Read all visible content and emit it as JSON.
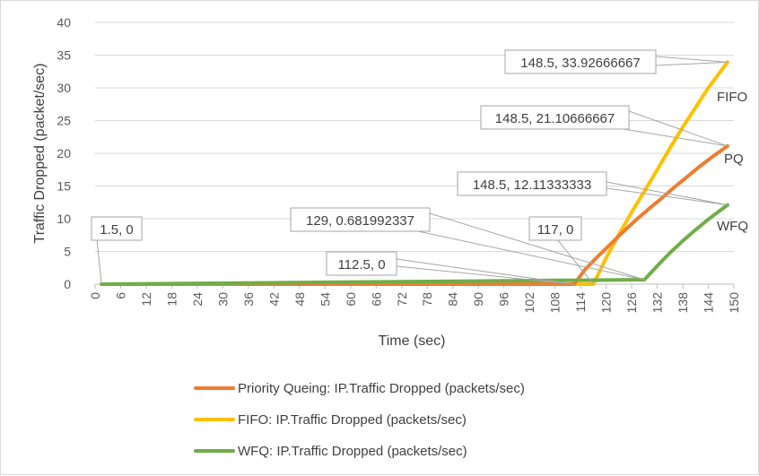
{
  "chart_data": {
    "type": "line",
    "xlabel": "Time (sec)",
    "ylabel": "Traffic Dropped (packet/sec)",
    "xlim": [
      0,
      150
    ],
    "ylim": [
      0,
      40
    ],
    "x_ticks": [
      "0",
      "6",
      "12",
      "18",
      "24",
      "30",
      "36",
      "42",
      "48",
      "54",
      "60",
      "66",
      "72",
      "78",
      "84",
      "90",
      "96",
      "102",
      "108",
      "114",
      "120",
      "126",
      "132",
      "138",
      "144",
      "150"
    ],
    "y_ticks": [
      "0",
      "5",
      "10",
      "15",
      "20",
      "25",
      "30",
      "35",
      "40"
    ],
    "grid": "horizontal",
    "legend_position": "bottom",
    "series": [
      {
        "name": "Priority Queing: IP.Traffic Dropped (packets/sec)",
        "label": "PQ",
        "color": "#ED7D31",
        "x": [
          1.5,
          112.5,
          115,
          118,
          121,
          124,
          127,
          130,
          133,
          136,
          139,
          142,
          145,
          148.5
        ],
        "y": [
          0,
          0,
          2.2,
          4.2,
          6.1,
          8.0,
          9.8,
          11.5,
          13.1,
          14.8,
          16.4,
          18.0,
          19.5,
          21.10666667
        ]
      },
      {
        "name": "FIFO: IP.Traffic Dropped (packets/sec)",
        "label": "FIFO",
        "color": "#FFC000",
        "x": [
          1.5,
          117,
          120,
          123,
          126,
          129,
          132,
          135,
          138,
          141,
          144,
          148.5
        ],
        "y": [
          0,
          0,
          4.0,
          7.6,
          11.0,
          14.2,
          17.5,
          20.8,
          24.0,
          27.0,
          30.0,
          33.92666667
        ]
      },
      {
        "name": "WFQ: IP.Traffic Dropped (packets/sec)",
        "label": "WFQ",
        "color": "#70AD47",
        "x": [
          1.5,
          129,
          132,
          135,
          138,
          141,
          144,
          148.5
        ],
        "y": [
          0,
          0.681992337,
          2.8,
          4.8,
          6.6,
          8.3,
          9.9,
          12.11333333
        ]
      }
    ],
    "annotations": [
      {
        "text": "1.5, 0",
        "x": 1.5,
        "y": 0
      },
      {
        "text": "112.5, 0",
        "x": 112.5,
        "y": 0
      },
      {
        "text": "117, 0",
        "x": 117,
        "y": 0
      },
      {
        "text": "129, 0.681992337",
        "x": 129,
        "y": 0.681992337
      },
      {
        "text": "148.5, 33.92666667",
        "x": 148.5,
        "y": 33.92666667
      },
      {
        "text": "148.5, 21.10666667",
        "x": 148.5,
        "y": 21.10666667
      },
      {
        "text": "148.5, 12.11333333",
        "x": 148.5,
        "y": 12.11333333
      }
    ]
  }
}
